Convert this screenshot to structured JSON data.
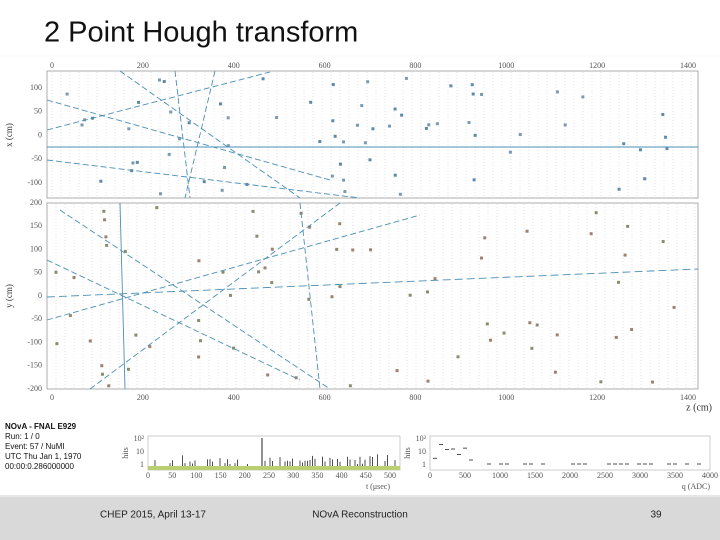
{
  "header": {
    "title": "2 Point Hough transform"
  },
  "display": {
    "z_ticks": [
      "0",
      "200",
      "400",
      "600",
      "800",
      "1000",
      "1200",
      "1400"
    ],
    "top_view": {
      "axis_label": "x (cm)",
      "ticks": [
        "100",
        "50",
        "0",
        "-50",
        "-100"
      ]
    },
    "side_view": {
      "axis_label": "y (cm)",
      "ticks": [
        "200",
        "150",
        "100",
        "50",
        "0",
        "-50",
        "-100",
        "-150",
        "-200"
      ]
    },
    "z_label": "z (cm)"
  },
  "info": {
    "lines": [
      "NOvA - FNAL E929",
      "Run: 1 / 0",
      "Event: 57 / NuMI",
      "UTC Thu Jan 1, 1970",
      "00:00:0.286000000"
    ]
  },
  "time_hist": {
    "y_label": "hits",
    "y_ticks": [
      "10²",
      "10",
      "1"
    ],
    "x_ticks": [
      "0",
      "50",
      "100",
      "150",
      "200",
      "250",
      "300",
      "350",
      "400",
      "450",
      "500"
    ],
    "x_label": "t (μsec)"
  },
  "charge_hist": {
    "y_label": "hits",
    "y_ticks": [
      "10²",
      "10",
      "1"
    ],
    "x_ticks": [
      "0",
      "500",
      "1000",
      "1500",
      "2000",
      "2500",
      "3000",
      "3500",
      "4000"
    ],
    "x_label": "q (ADC)"
  },
  "footer": {
    "left": "CHEP 2015, April 13-17",
    "center": "NOvA Reconstruction",
    "page": "39"
  }
}
